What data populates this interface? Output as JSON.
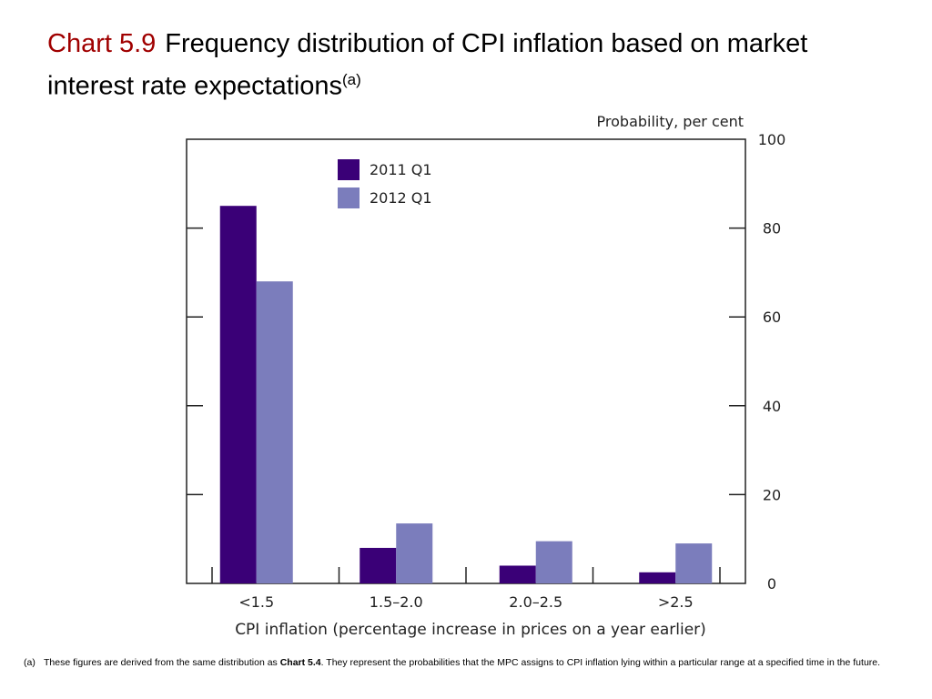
{
  "title": {
    "number": "Chart 5.9",
    "text": "Frequency distribution of CPI inflation based on market interest rate expectations",
    "superscript": "(a)"
  },
  "chart_data": {
    "type": "bar",
    "categories": [
      "<1.5",
      "1.5–2.0",
      "2.0–2.5",
      ">2.5"
    ],
    "series": [
      {
        "name": "2011 Q1",
        "color": "#3a0077",
        "values": [
          85,
          8,
          4,
          2.5
        ]
      },
      {
        "name": "2012 Q1",
        "color": "#7b7dbc",
        "values": [
          68,
          13.5,
          9.5,
          9
        ]
      }
    ],
    "xlabel": "CPI inflation (percentage increase in prices on a year earlier)",
    "ylabel": "Probability, per cent",
    "ylim": [
      0,
      100
    ],
    "yticks": [
      0,
      20,
      40,
      60,
      80,
      100
    ],
    "legend_position": "top-left",
    "grid": false
  },
  "footnote": {
    "mark": "(a)",
    "before": "These figures are derived from the same distribution as ",
    "bold": "Chart 5.4",
    "after": ".  They represent the probabilities that the MPC assigns to CPI inflation lying within a particular range at a specified time in the future."
  }
}
